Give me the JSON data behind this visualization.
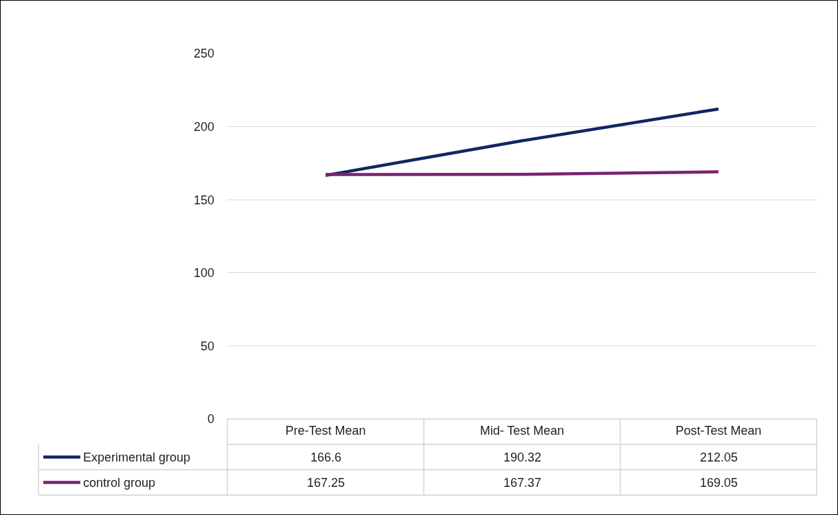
{
  "chart_data": {
    "type": "line",
    "categories": [
      "Pre-Test Mean",
      "Mid- Test Mean",
      "Post-Test Mean"
    ],
    "series": [
      {
        "name": "Experimental group",
        "color": "#0f2862",
        "values": [
          166.6,
          190.32,
          212.05
        ]
      },
      {
        "name": "control group",
        "color": "#7a2372",
        "values": [
          167.25,
          167.37,
          169.05
        ]
      }
    ],
    "ylim": [
      0,
      250
    ],
    "yticks": [
      0,
      50,
      100,
      150,
      200,
      250
    ],
    "grid": "y",
    "data_labels": true,
    "legend": "bottom left",
    "marker": "none",
    "line_style": "solid"
  }
}
